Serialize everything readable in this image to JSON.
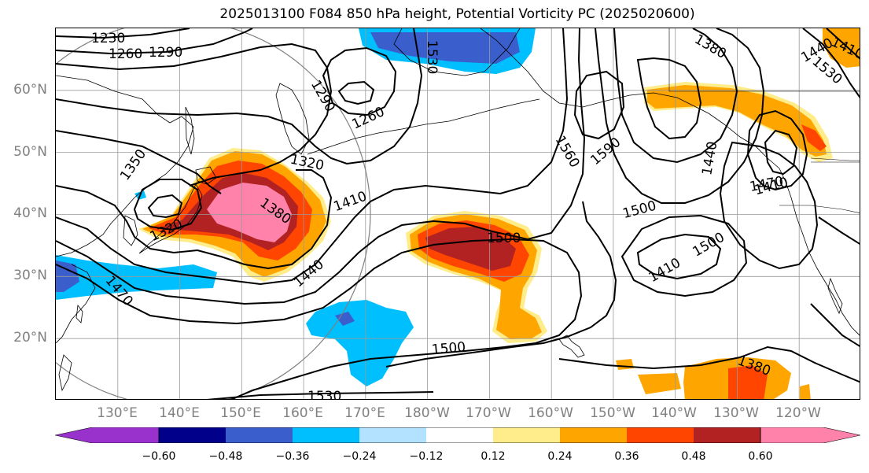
{
  "title": "2025013100 F084 850 hPa height, Potential Vorticity PC (2025020600)",
  "lat_labels": [
    {
      "text": "60°N",
      "lat": 60
    },
    {
      "text": "50°N",
      "lat": 50
    },
    {
      "text": "40°N",
      "lat": 40
    },
    {
      "text": "30°N",
      "lat": 30
    },
    {
      "text": "20°N",
      "lat": 20
    }
  ],
  "lon_labels": [
    {
      "text": "130°E",
      "lon": 130
    },
    {
      "text": "140°E",
      "lon": 140
    },
    {
      "text": "150°E",
      "lon": 150
    },
    {
      "text": "160°E",
      "lon": 160
    },
    {
      "text": "170°E",
      "lon": 170
    },
    {
      "text": "180°W",
      "lon": 180
    },
    {
      "text": "170°W",
      "lon": 190
    },
    {
      "text": "160°W",
      "lon": 200
    },
    {
      "text": "150°W",
      "lon": 210
    },
    {
      "text": "140°W",
      "lon": 220
    },
    {
      "text": "130°W",
      "lon": 230
    },
    {
      "text": "120°W",
      "lon": 240
    }
  ],
  "map_extent": {
    "lon_min": 120,
    "lon_max": 250,
    "lat_min": 10,
    "lat_max": 70
  },
  "colorbar": {
    "colors": [
      "#9932CC",
      "#00008B",
      "#3A5FCD",
      "#00BFFF",
      "#B2E2FF",
      "#FFFFFF",
      "#FFEC8B",
      "#FFA500",
      "#FF4500",
      "#B22222",
      "#FF82AB"
    ],
    "labels": [
      "−0.60",
      "−0.48",
      "−0.36",
      "−0.24",
      "−0.12",
      "0.12",
      "0.24",
      "0.36",
      "0.48",
      "0.60"
    ]
  },
  "contour_labels": [
    {
      "text": "1230"
    },
    {
      "text": "1260"
    },
    {
      "text": "1290"
    },
    {
      "text": "1260"
    },
    {
      "text": "1290"
    },
    {
      "text": "1320"
    },
    {
      "text": "1350"
    },
    {
      "text": "1320"
    },
    {
      "text": "1380"
    },
    {
      "text": "1410"
    },
    {
      "text": "1440"
    },
    {
      "text": "1470"
    },
    {
      "text": "1500"
    },
    {
      "text": "1530"
    },
    {
      "text": "1500"
    },
    {
      "text": "1560"
    },
    {
      "text": "1590"
    },
    {
      "text": "1500"
    },
    {
      "text": "1410"
    },
    {
      "text": "1440"
    },
    {
      "text": "1470"
    },
    {
      "text": "1410"
    },
    {
      "text": "1380"
    },
    {
      "text": "1530"
    },
    {
      "text": "1440"
    },
    {
      "text": "1410"
    },
    {
      "text": "1380"
    },
    {
      "text": "1500"
    },
    {
      "text": "1530"
    }
  ]
}
